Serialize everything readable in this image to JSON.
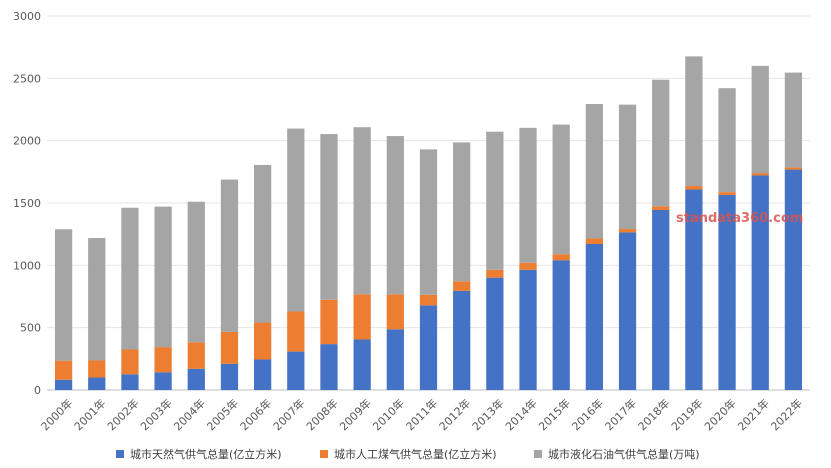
{
  "chart_data": {
    "type": "bar",
    "stacked": true,
    "categories": [
      "2000年",
      "2001年",
      "2002年",
      "2003年",
      "2004年",
      "2005年",
      "2006年",
      "2007年",
      "2008年",
      "2009年",
      "2010年",
      "2011年",
      "2012年",
      "2013年",
      "2014年",
      "2015年",
      "2016年",
      "2017年",
      "2018年",
      "2019年",
      "2020年",
      "2021年",
      "2022年"
    ],
    "series": [
      {
        "name": "城市天然气供气总量(亿立方米)",
        "color": "#4472c4",
        "values": [
          82,
          100,
          126,
          142,
          170,
          210,
          245,
          308,
          368,
          405,
          487,
          679,
          795,
          901,
          964,
          1041,
          1171,
          1264,
          1444,
          1608,
          1564,
          1721,
          1768
        ]
      },
      {
        "name": "城市人工煤气供气总量(亿立方米)",
        "color": "#ed7d31",
        "values": [
          153,
          137,
          199,
          202,
          213,
          256,
          296,
          322,
          356,
          362,
          280,
          85,
          77,
          63,
          56,
          48,
          44,
          27,
          30,
          28,
          23,
          19,
          18
        ]
      },
      {
        "name": "城市液化石油气供气总量(万吨)",
        "color": "#a5a5a5",
        "values": [
          1054,
          982,
          1137,
          1127,
          1127,
          1222,
          1264,
          1467,
          1329,
          1341,
          1270,
          1166,
          1114,
          1108,
          1083,
          1040,
          1079,
          998,
          1015,
          1040,
          834,
          860,
          760
        ]
      }
    ],
    "ylim": [
      0,
      3000
    ],
    "yticks": [
      0,
      500,
      1000,
      1500,
      2000,
      2500,
      3000
    ],
    "grid": true,
    "legend_position": "bottom"
  },
  "watermark": "standata360.com"
}
